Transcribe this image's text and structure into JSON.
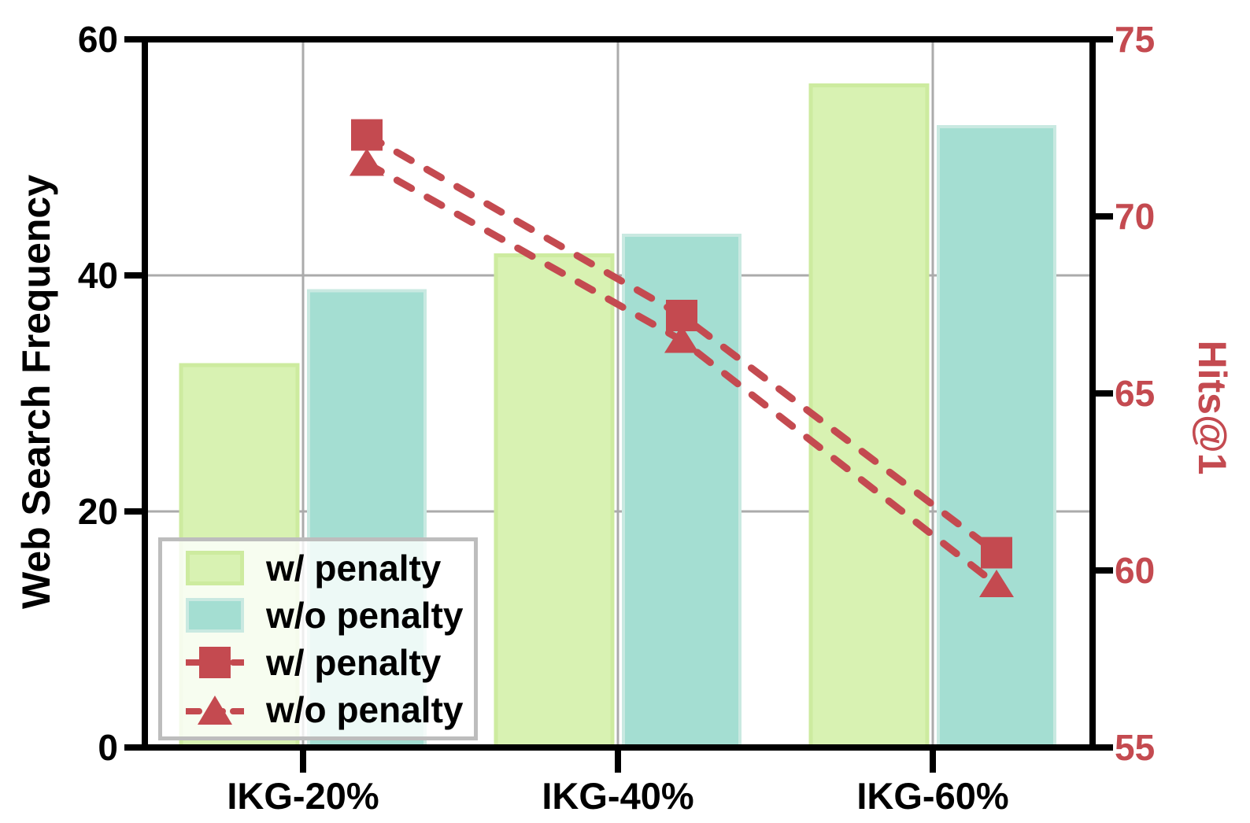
{
  "colors": {
    "red": "#c44a50",
    "bar_green": "#d8f2b2",
    "bar_green_edge": "#cdeb9f",
    "bar_teal": "#a4ded2",
    "bar_teal_edge": "#c9e9e1",
    "grid": "#ababab",
    "axis": "#000000",
    "legend_border": "#bdbdbd"
  },
  "chart_data": {
    "type": "bar+line (dual y-axis)",
    "categories": [
      "IKG-20%",
      "IKG-40%",
      "IKG-60%"
    ],
    "bar_series": [
      {
        "name": "w/ penalty",
        "axis": "left",
        "color_key": "bar_green",
        "values": [
          32.4,
          41.7,
          56.1
        ]
      },
      {
        "name": "w/o penalty",
        "axis": "left",
        "color_key": "bar_teal",
        "values": [
          38.7,
          43.4,
          52.6
        ]
      }
    ],
    "line_series": [
      {
        "name": "w/ penalty",
        "axis": "right",
        "marker": "square",
        "style": "dashed",
        "values": [
          72.3,
          67.2,
          60.5
        ]
      },
      {
        "name": "w/o penalty",
        "axis": "right",
        "marker": "triangle",
        "style": "dashed",
        "values": [
          71.5,
          66.5,
          59.6
        ]
      }
    ],
    "y_left": {
      "label": "Web Search Frequency",
      "min": 0,
      "max": 60,
      "ticks": [
        "0",
        "20",
        "40",
        "60"
      ]
    },
    "y_right": {
      "label": "Hits@1",
      "min": 55,
      "max": 75,
      "ticks": [
        "55",
        "60",
        "65",
        "70",
        "75"
      ]
    },
    "grid": {
      "horizontal_at_left_values": [
        20,
        40
      ],
      "vertical_at_categories": true
    },
    "legend": {
      "position": "lower-left",
      "entries": [
        {
          "label": "w/ penalty",
          "swatch": "green-bar"
        },
        {
          "label": "w/o penalty",
          "swatch": "teal-bar"
        },
        {
          "label": "w/ penalty",
          "swatch": "red-square-dashed-line"
        },
        {
          "label": "w/o penalty",
          "swatch": "red-triangle-dashed-line"
        }
      ]
    }
  }
}
